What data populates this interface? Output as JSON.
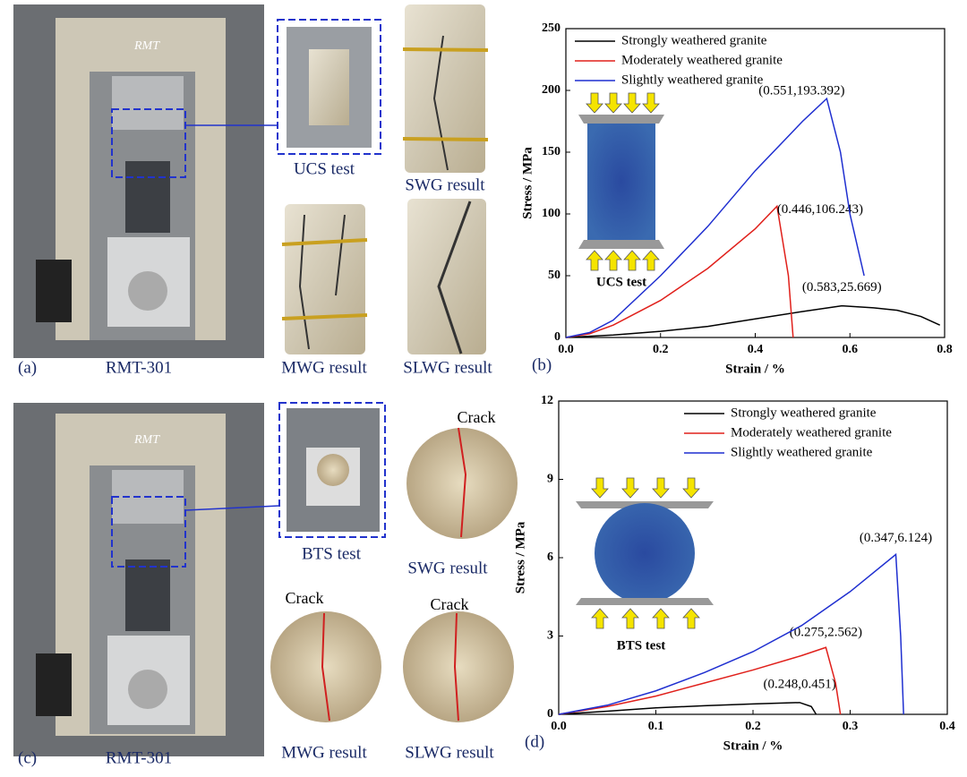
{
  "photos": {
    "top": {
      "panel": "(a)",
      "machine": "RMT-301",
      "logo": "RMT",
      "test": "UCS test",
      "swg": "SWG result",
      "mwg": "MWG result",
      "slwg": "SLWG result"
    },
    "bottom": {
      "panel": "(c)",
      "machine": "RMT-301",
      "logo": "RMT",
      "test": "BTS test",
      "swg": "SWG result",
      "mwg": "MWG result",
      "slwg": "SLWG result",
      "cracks": [
        "Crack",
        "Crack",
        "Crack"
      ]
    }
  },
  "chart_data": [
    {
      "type": "line",
      "panel_label": "(b)",
      "inset_label": "UCS test",
      "xlabel": "Strain / %",
      "ylabel": "Stress / MPa",
      "xlim": [
        0,
        0.8
      ],
      "xticks": [
        {
          "value": 0,
          "label": "0.0"
        },
        0.2,
        0.4,
        0.6,
        0.8
      ],
      "ylim": [
        0,
        250
      ],
      "yticks": [
        0,
        50,
        100,
        150,
        200,
        250
      ],
      "legend": "upper left",
      "series": [
        {
          "name": "Strongly weathered granite",
          "color": "#000000",
          "peak_label": "(0.583,25.669)",
          "x": [
            0,
            0.1,
            0.2,
            0.3,
            0.4,
            0.5,
            0.583,
            0.65,
            0.7,
            0.75,
            0.79
          ],
          "values": [
            0,
            2,
            5,
            9,
            15,
            21,
            25.669,
            24,
            22,
            17,
            10
          ]
        },
        {
          "name": "Moderately weathered granite",
          "color": "#e0201b",
          "peak_label": "(0.446,106.243)",
          "x": [
            0,
            0.05,
            0.1,
            0.2,
            0.3,
            0.4,
            0.446,
            0.47,
            0.48
          ],
          "values": [
            0,
            3,
            10,
            30,
            56,
            88,
            106.243,
            50,
            0
          ]
        },
        {
          "name": "Slightly weathered granite",
          "color": "#1f2fd0",
          "peak_label": "(0.551,193.392)",
          "x": [
            0,
            0.05,
            0.1,
            0.2,
            0.3,
            0.4,
            0.5,
            0.551,
            0.58,
            0.6,
            0.63
          ],
          "values": [
            0,
            4,
            14,
            50,
            90,
            135,
            175,
            193.392,
            150,
            100,
            50
          ]
        }
      ]
    },
    {
      "type": "line",
      "panel_label": "(d)",
      "inset_label": "BTS test",
      "xlabel": "Strain / %",
      "ylabel": "Stress / MPa",
      "xlim": [
        0,
        0.4
      ],
      "xticks": [
        {
          "value": 0,
          "label": "0.0"
        },
        0.1,
        0.2,
        0.3,
        0.4
      ],
      "ylim": [
        0,
        12
      ],
      "yticks": [
        0,
        3,
        6,
        9,
        12
      ],
      "legend": "upper right",
      "series": [
        {
          "name": "Strongly weathered granite",
          "color": "#000000",
          "peak_label": "(0.248,0.451)",
          "x": [
            0,
            0.05,
            0.1,
            0.15,
            0.2,
            0.248,
            0.26,
            0.265
          ],
          "values": [
            0,
            0.12,
            0.25,
            0.33,
            0.4,
            0.451,
            0.3,
            0
          ]
        },
        {
          "name": "Moderately weathered granite",
          "color": "#e0201b",
          "peak_label": "(0.275,2.562)",
          "x": [
            0,
            0.05,
            0.1,
            0.15,
            0.2,
            0.25,
            0.275,
            0.285,
            0.29
          ],
          "values": [
            0,
            0.3,
            0.7,
            1.2,
            1.7,
            2.25,
            2.562,
            1.2,
            0
          ]
        },
        {
          "name": "Slightly weathered granite",
          "color": "#1f2fd0",
          "peak_label": "(0.347,6.124)",
          "x": [
            0,
            0.05,
            0.1,
            0.15,
            0.2,
            0.25,
            0.3,
            0.347,
            0.352,
            0.355
          ],
          "values": [
            0,
            0.35,
            0.9,
            1.6,
            2.4,
            3.4,
            4.7,
            6.124,
            3,
            0
          ]
        }
      ]
    }
  ]
}
